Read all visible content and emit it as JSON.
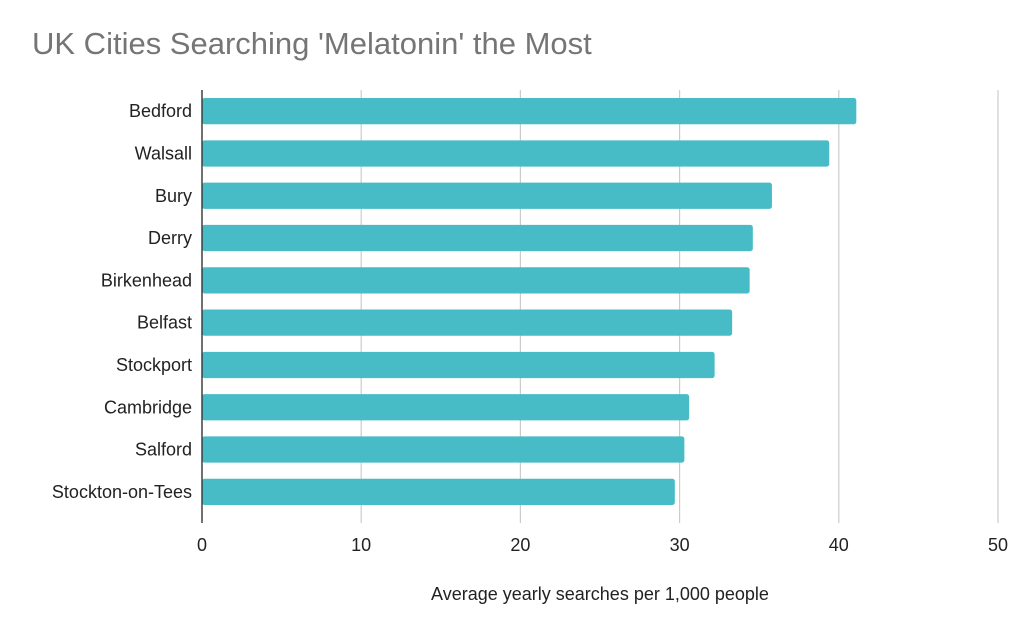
{
  "chart_data": {
    "type": "bar",
    "orientation": "horizontal",
    "title": "UK Cities Searching 'Melatonin' the Most",
    "xlabel": "Average yearly searches per 1,000 people",
    "ylabel": "",
    "categories": [
      "Bedford",
      "Walsall",
      "Bury",
      "Derry",
      "Birkenhead",
      "Belfast",
      "Stockport",
      "Cambridge",
      "Salford",
      "Stockton-on-Tees"
    ],
    "values": [
      41.1,
      39.4,
      35.8,
      34.6,
      34.4,
      33.3,
      32.2,
      30.6,
      30.3,
      29.7
    ],
    "xlim": [
      0,
      50
    ],
    "xticks": [
      0,
      10,
      20,
      30,
      40,
      50
    ],
    "grid": true,
    "legend": "none",
    "bar_color": "#47bcc6",
    "grid_color": "#cccccc",
    "axis_color": "#333333"
  }
}
